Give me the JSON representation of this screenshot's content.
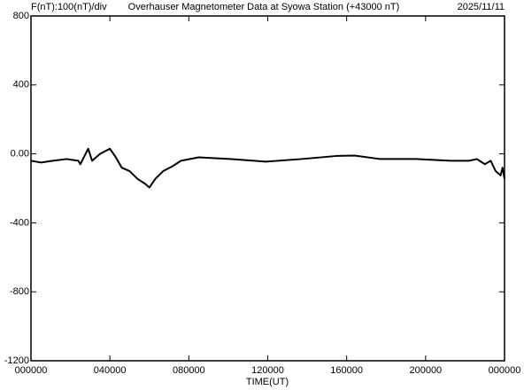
{
  "chart_data": {
    "type": "line",
    "title_left": "F(nT):100(nT)/div",
    "title": "Overhauser Magnetometer Data at Syowa Station (+43000 nT)",
    "date": "2025/11/11",
    "x_label": "TIME(UT)",
    "xlim": [
      0,
      24
    ],
    "xticks": [
      {
        "value": 0,
        "label": "000000"
      },
      {
        "value": 4,
        "label": "040000"
      },
      {
        "value": 8,
        "label": "080000"
      },
      {
        "value": 12,
        "label": "120000"
      },
      {
        "value": 16,
        "label": "160000"
      },
      {
        "value": 20,
        "label": "200000"
      },
      {
        "value": 24,
        "label": "000000"
      }
    ],
    "ylim": [
      -1200,
      800
    ],
    "yticks": [
      {
        "value": -1200,
        "label": "-1200"
      },
      -800,
      -400,
      {
        "value": 0,
        "label": "0.00"
      },
      400,
      800
    ],
    "x": [
      0,
      0.5,
      1.1,
      1.8,
      2.4,
      2.5,
      2.9,
      3.1,
      3.5,
      4.0,
      4.3,
      4.6,
      5.0,
      5.4,
      5.8,
      6.0,
      6.3,
      6.7,
      7.2,
      7.6,
      8.5,
      10.1,
      11.9,
      13.7,
      15.5,
      16.4,
      17.7,
      19.5,
      21.3,
      22.2,
      22.6,
      23.0,
      23.3,
      23.55,
      23.8,
      23.9,
      24
    ],
    "series": [
      {
        "name": "F",
        "color": "#000000",
        "values": [
          -40,
          -50,
          -40,
          -30,
          -40,
          -60,
          30,
          -40,
          0,
          30,
          -20,
          -80,
          -100,
          -145,
          -175,
          -195,
          -145,
          -100,
          -70,
          -40,
          -20,
          -30,
          -45,
          -30,
          -12,
          -10,
          -30,
          -30,
          -40,
          -40,
          -30,
          -60,
          -40,
          -100,
          -125,
          -80,
          -145
        ]
      }
    ]
  }
}
